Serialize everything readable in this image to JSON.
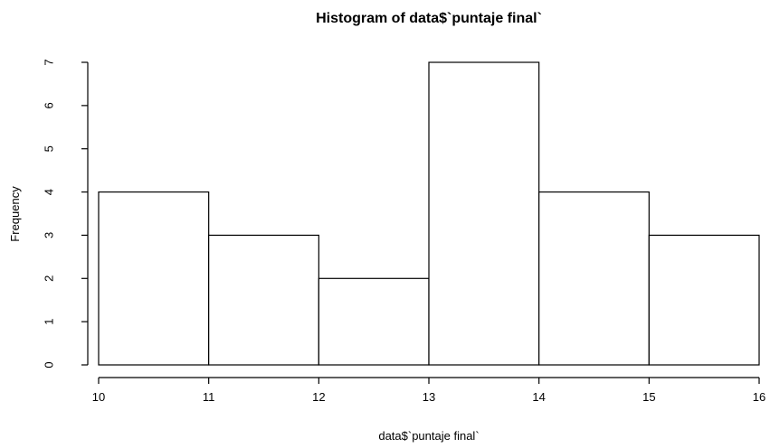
{
  "chart_data": {
    "type": "bar",
    "title": "Histogram of data$`puntaje final`",
    "xlabel": "data$`puntaje final`",
    "ylabel": "Frequency",
    "bins": [
      {
        "start": 10,
        "end": 11,
        "count": 4
      },
      {
        "start": 11,
        "end": 12,
        "count": 3
      },
      {
        "start": 12,
        "end": 13,
        "count": 2
      },
      {
        "start": 13,
        "end": 14,
        "count": 7
      },
      {
        "start": 14,
        "end": 15,
        "count": 4
      },
      {
        "start": 15,
        "end": 16,
        "count": 3
      }
    ],
    "xticks": [
      10,
      11,
      12,
      13,
      14,
      15,
      16
    ],
    "yticks": [
      0,
      1,
      2,
      3,
      4,
      5,
      6,
      7
    ],
    "xlim": [
      10,
      16
    ],
    "ylim": [
      0,
      7
    ],
    "grid": false,
    "legend": "none",
    "bar_fill": "#ffffff",
    "bar_stroke": "#000000"
  }
}
